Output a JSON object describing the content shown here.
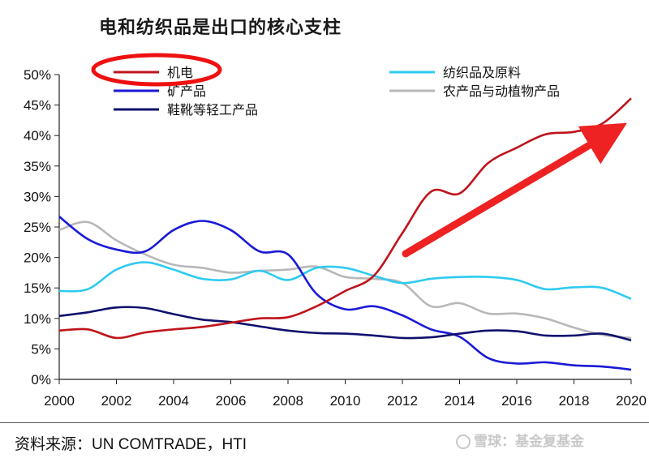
{
  "title": "电和纺织品是出口的核心支柱",
  "source": "资料来源：UN COMTRADE，HTI",
  "watermark": "雪球：基金复基金",
  "chart_data": {
    "type": "line",
    "x_ticks": [
      2000,
      2002,
      2004,
      2006,
      2008,
      2010,
      2012,
      2014,
      2016,
      2018,
      2020
    ],
    "y_ticks": [
      "0%",
      "5%",
      "10%",
      "15%",
      "20%",
      "25%",
      "30%",
      "35%",
      "40%",
      "45%",
      "50%"
    ],
    "xlim": [
      2000,
      2020
    ],
    "ylim": [
      0,
      50
    ],
    "grid": false,
    "legend_position": "top",
    "series": [
      {
        "name": "机电",
        "color": "#c0141c",
        "x": [
          2000,
          2001,
          2002,
          2003,
          2004,
          2005,
          2006,
          2007,
          2008,
          2009,
          2010,
          2011,
          2012,
          2013,
          2014,
          2015,
          2016,
          2017,
          2018,
          2019,
          2020
        ],
        "y": [
          8.0,
          8.2,
          6.8,
          7.7,
          8.2,
          8.6,
          9.3,
          10.0,
          10.2,
          12.0,
          14.5,
          17.0,
          24.0,
          30.8,
          30.5,
          35.5,
          38.0,
          40.2,
          40.6,
          42.0,
          46.1
        ]
      },
      {
        "name": "纺织品及原料",
        "color": "#2ecbf0",
        "x": [
          2000,
          2001,
          2002,
          2003,
          2004,
          2005,
          2006,
          2007,
          2008,
          2009,
          2010,
          2011,
          2012,
          2013,
          2014,
          2015,
          2016,
          2017,
          2018,
          2019,
          2020
        ],
        "y": [
          14.5,
          14.8,
          18.0,
          19.2,
          18.0,
          16.5,
          16.4,
          17.8,
          16.3,
          18.3,
          18.3,
          17.0,
          15.8,
          16.5,
          16.8,
          16.8,
          16.3,
          14.8,
          15.1,
          15.0,
          13.2
        ]
      },
      {
        "name": "矿产品",
        "color": "#1a1ad6",
        "x": [
          2000,
          2001,
          2002,
          2003,
          2004,
          2005,
          2006,
          2007,
          2008,
          2009,
          2010,
          2011,
          2012,
          2013,
          2014,
          2015,
          2016,
          2017,
          2018,
          2019,
          2020
        ],
        "y": [
          26.7,
          23.0,
          21.3,
          21.0,
          24.5,
          26.0,
          24.5,
          21.0,
          20.5,
          14.0,
          11.5,
          12.0,
          10.5,
          8.2,
          7.0,
          3.5,
          2.6,
          2.8,
          2.3,
          2.1,
          1.6
        ]
      },
      {
        "name": "农产品与动植物产品",
        "color": "#b8b8b8",
        "x": [
          2000,
          2001,
          2002,
          2003,
          2004,
          2005,
          2006,
          2007,
          2008,
          2009,
          2010,
          2011,
          2012,
          2013,
          2014,
          2015,
          2016,
          2017,
          2018,
          2019,
          2020
        ],
        "y": [
          24.5,
          25.8,
          22.8,
          20.5,
          18.8,
          18.3,
          17.5,
          17.8,
          18.0,
          18.5,
          16.8,
          16.5,
          15.8,
          12.0,
          12.5,
          10.8,
          10.8,
          10.0,
          8.5,
          7.3,
          6.8
        ]
      },
      {
        "name": "鞋靴等轻工产品",
        "color": "#10106e",
        "x": [
          2000,
          2001,
          2002,
          2003,
          2004,
          2005,
          2006,
          2007,
          2008,
          2009,
          2010,
          2011,
          2012,
          2013,
          2014,
          2015,
          2016,
          2017,
          2018,
          2019,
          2020
        ],
        "y": [
          10.4,
          11.0,
          11.8,
          11.7,
          10.7,
          9.8,
          9.4,
          8.7,
          8.0,
          7.6,
          7.5,
          7.2,
          6.8,
          6.9,
          7.5,
          8.0,
          7.9,
          7.2,
          7.2,
          7.5,
          6.4
        ]
      }
    ]
  }
}
